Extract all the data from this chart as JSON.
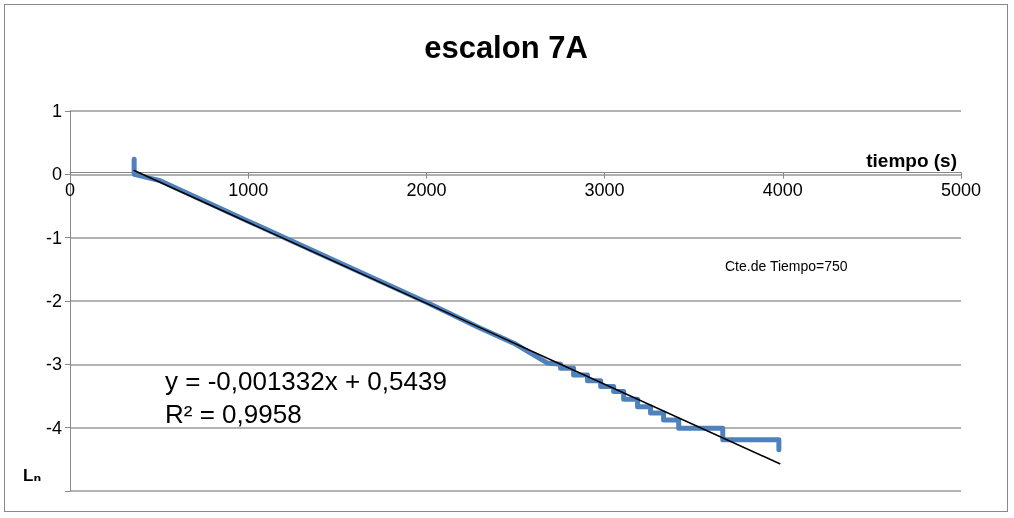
{
  "chart_data": {
    "type": "line",
    "title": "escalon 7A",
    "xlabel": "tiempo (s)",
    "ylabel": "Lₙ",
    "annotations": [
      "y = -0,001332x + 0,5439\nR² = 0,9958",
      "Cte.de Tiempo=750"
    ],
    "xlim": [
      0,
      5000
    ],
    "xticks": [
      0,
      1000,
      2000,
      3000,
      4000,
      5000
    ],
    "ylim": [
      -5,
      1
    ],
    "yticks": [
      {
        "value": -5,
        "label": null
      },
      -4,
      -3,
      -2,
      -1,
      0,
      1
    ],
    "grid": "y",
    "marker": "none",
    "line_style": "solid",
    "series": [
      {
        "color": "#4f81bd",
        "x": [
          360,
          360,
          506,
          1000,
          1500,
          2000,
          2303,
          2500,
          2680,
          2753,
          2753,
          2826,
          2826,
          2904,
          2904,
          2978,
          2978,
          3051,
          3051,
          3107,
          3107,
          3185,
          3185,
          3258,
          3258,
          3331,
          3331,
          3416,
          3416,
          3663,
          3663,
          3978,
          3978
        ],
        "values": [
          0.24,
          0.0,
          -0.1,
          -0.74,
          -1.38,
          -2.02,
          -2.43,
          -2.68,
          -2.98,
          -3.0,
          -3.06,
          -3.06,
          -3.17,
          -3.17,
          -3.26,
          -3.26,
          -3.35,
          -3.35,
          -3.43,
          -3.43,
          -3.55,
          -3.55,
          -3.67,
          -3.67,
          -3.77,
          -3.77,
          -3.88,
          -3.88,
          -4.01,
          -4.01,
          -4.19,
          -4.19,
          -4.35
        ]
      },
      {
        "color": "#000000",
        "x": [
          360,
          3983
        ],
        "values": [
          0.06,
          -4.57
        ]
      }
    ]
  }
}
